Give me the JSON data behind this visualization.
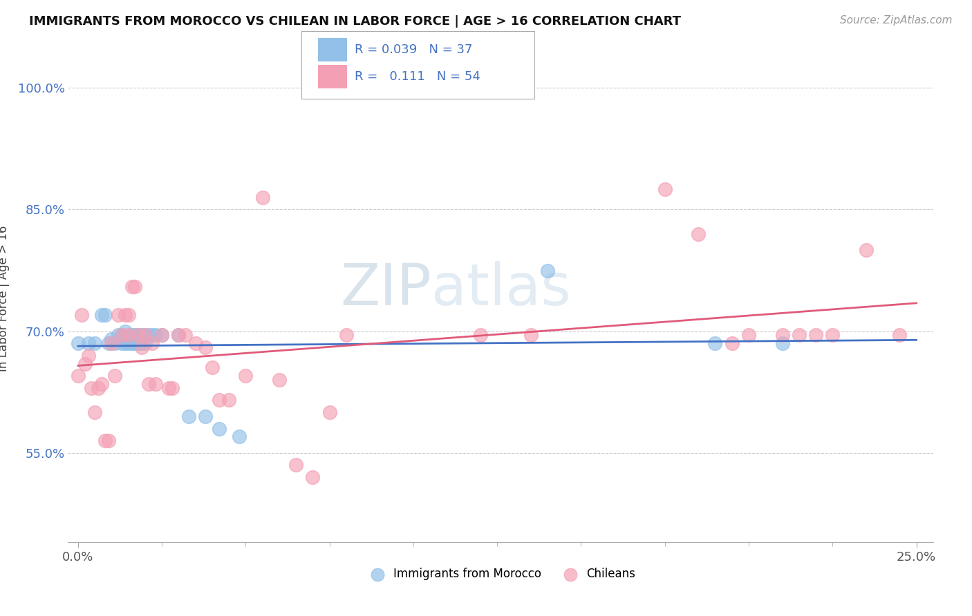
{
  "title": "IMMIGRANTS FROM MOROCCO VS CHILEAN IN LABOR FORCE | AGE > 16 CORRELATION CHART",
  "source_text": "Source: ZipAtlas.com",
  "ylabel": "In Labor Force | Age > 16",
  "xlim": [
    -0.003,
    0.255
  ],
  "ylim": [
    0.44,
    1.04
  ],
  "xticks": [
    0.0,
    0.25
  ],
  "xticklabels": [
    "0.0%",
    "25.0%"
  ],
  "yticks": [
    0.55,
    0.7,
    0.85,
    1.0
  ],
  "yticklabels": [
    "55.0%",
    "70.0%",
    "85.0%",
    "100.0%"
  ],
  "morocco_R": "0.039",
  "morocco_N": "37",
  "chilean_R": "0.111",
  "chilean_N": "54",
  "morocco_color": "#92C0E8",
  "chilean_color": "#F4A0B4",
  "morocco_line_color": "#4472C4",
  "chilean_line_color": "#E05A7A",
  "watermark_zip": "ZIP",
  "watermark_atlas": "atlas",
  "morocco_x": [
    0.0,
    0.003,
    0.005,
    0.007,
    0.008,
    0.009,
    0.01,
    0.011,
    0.012,
    0.013,
    0.013,
    0.014,
    0.014,
    0.015,
    0.015,
    0.016,
    0.016,
    0.017,
    0.017,
    0.018,
    0.018,
    0.019,
    0.019,
    0.02,
    0.02,
    0.021,
    0.022,
    0.023,
    0.025,
    0.03,
    0.033,
    0.038,
    0.042,
    0.048,
    0.14,
    0.19,
    0.21
  ],
  "morocco_y": [
    0.685,
    0.685,
    0.685,
    0.72,
    0.72,
    0.685,
    0.69,
    0.685,
    0.695,
    0.695,
    0.685,
    0.7,
    0.685,
    0.695,
    0.685,
    0.695,
    0.685,
    0.695,
    0.685,
    0.695,
    0.685,
    0.695,
    0.685,
    0.695,
    0.685,
    0.695,
    0.695,
    0.695,
    0.695,
    0.695,
    0.595,
    0.595,
    0.58,
    0.57,
    0.775,
    0.685,
    0.685
  ],
  "chilean_x": [
    0.0,
    0.001,
    0.002,
    0.003,
    0.004,
    0.005,
    0.006,
    0.007,
    0.008,
    0.009,
    0.01,
    0.011,
    0.012,
    0.013,
    0.014,
    0.015,
    0.015,
    0.016,
    0.017,
    0.018,
    0.019,
    0.02,
    0.021,
    0.022,
    0.023,
    0.025,
    0.027,
    0.028,
    0.03,
    0.032,
    0.035,
    0.038,
    0.04,
    0.042,
    0.045,
    0.05,
    0.055,
    0.06,
    0.065,
    0.07,
    0.075,
    0.08,
    0.12,
    0.135,
    0.175,
    0.185,
    0.195,
    0.2,
    0.21,
    0.215,
    0.22,
    0.225,
    0.235,
    0.245
  ],
  "chilean_y": [
    0.645,
    0.72,
    0.66,
    0.67,
    0.63,
    0.6,
    0.63,
    0.635,
    0.565,
    0.565,
    0.685,
    0.645,
    0.72,
    0.695,
    0.72,
    0.72,
    0.695,
    0.755,
    0.755,
    0.695,
    0.68,
    0.695,
    0.635,
    0.685,
    0.635,
    0.695,
    0.63,
    0.63,
    0.695,
    0.695,
    0.685,
    0.68,
    0.655,
    0.615,
    0.615,
    0.645,
    0.865,
    0.64,
    0.535,
    0.52,
    0.6,
    0.695,
    0.695,
    0.695,
    0.875,
    0.82,
    0.685,
    0.695,
    0.695,
    0.695,
    0.695,
    0.695,
    0.8,
    0.695
  ]
}
